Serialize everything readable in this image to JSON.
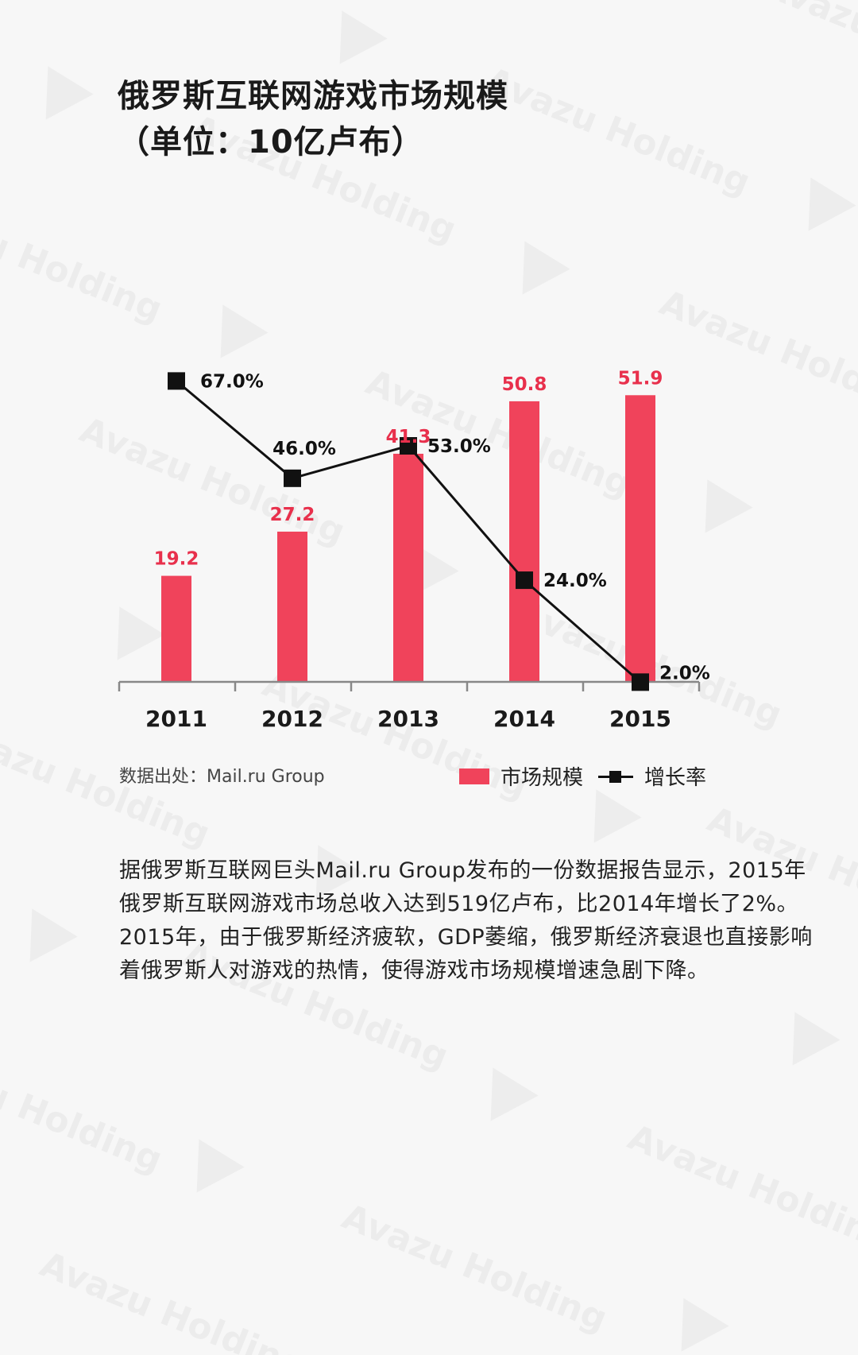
{
  "title": {
    "line1": "俄罗斯互联网游戏市场规模",
    "line2": "（单位：10亿卢布）"
  },
  "watermark": {
    "text": "Avazu Holding"
  },
  "source": "数据出处：Mail.ru Group",
  "legend": {
    "bar_label": "市场规模",
    "line_label": "增长率"
  },
  "colors": {
    "bar": "#f0435b",
    "line": "#111111",
    "value_label": "#e8304c"
  },
  "chart_data": {
    "type": "bar",
    "categories": [
      "2011",
      "2012",
      "2013",
      "2014",
      "2015"
    ],
    "series": [
      {
        "name": "市场规模",
        "type": "bar",
        "values": [
          19.2,
          27.2,
          41.3,
          50.8,
          51.9
        ],
        "labels": [
          "19.2",
          "27.2",
          "41.3",
          "50.8",
          "51.9"
        ]
      },
      {
        "name": "增长率",
        "type": "line",
        "values": [
          67.0,
          46.0,
          53.0,
          24.0,
          2.0
        ],
        "labels": [
          "67.0%",
          "46.0%",
          "53.0%",
          "24.0%",
          "2.0%"
        ]
      }
    ],
    "grid": false,
    "legend_position": "bottom-right"
  },
  "paragraph": "据俄罗斯互联网巨头Mail.ru Group发布的一份数据报告显示，2015年俄罗斯互联网游戏市场总收入达到519亿卢布，比2014年增长了2%。2015年，由于俄罗斯经济疲软，GDP萎缩，俄罗斯经济衰退也直接影响着俄罗斯人对游戏的热情，使得游戏市场规模增速急剧下降。"
}
